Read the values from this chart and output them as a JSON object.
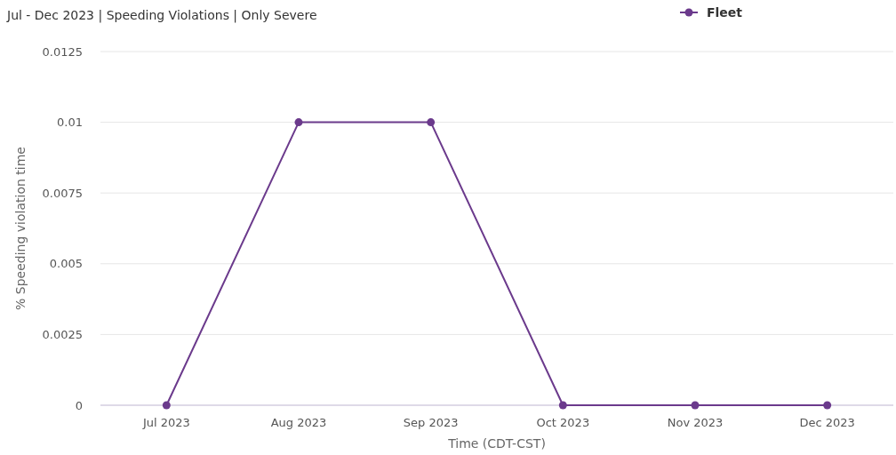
{
  "chart_data": {
    "type": "line",
    "title": "Jul - Dec 2023 | Speeding Violations | Only Severe",
    "xlabel": "Time (CDT-CST)",
    "ylabel": "% Speeding violation time",
    "categories": [
      "Jul 2023",
      "Aug 2023",
      "Sep 2023",
      "Oct 2023",
      "Nov 2023",
      "Dec 2023"
    ],
    "series": [
      {
        "name": "Fleet",
        "color": "#6b3a8c",
        "values": [
          0,
          0.01,
          0.01,
          0,
          0,
          0
        ]
      }
    ],
    "ylim": [
      0,
      0.0125
    ],
    "yticks": [
      0,
      0.0025,
      0.005,
      0.0075,
      0.01,
      0.0125
    ],
    "grid": "y",
    "legend": "top right",
    "marker": "circle"
  }
}
